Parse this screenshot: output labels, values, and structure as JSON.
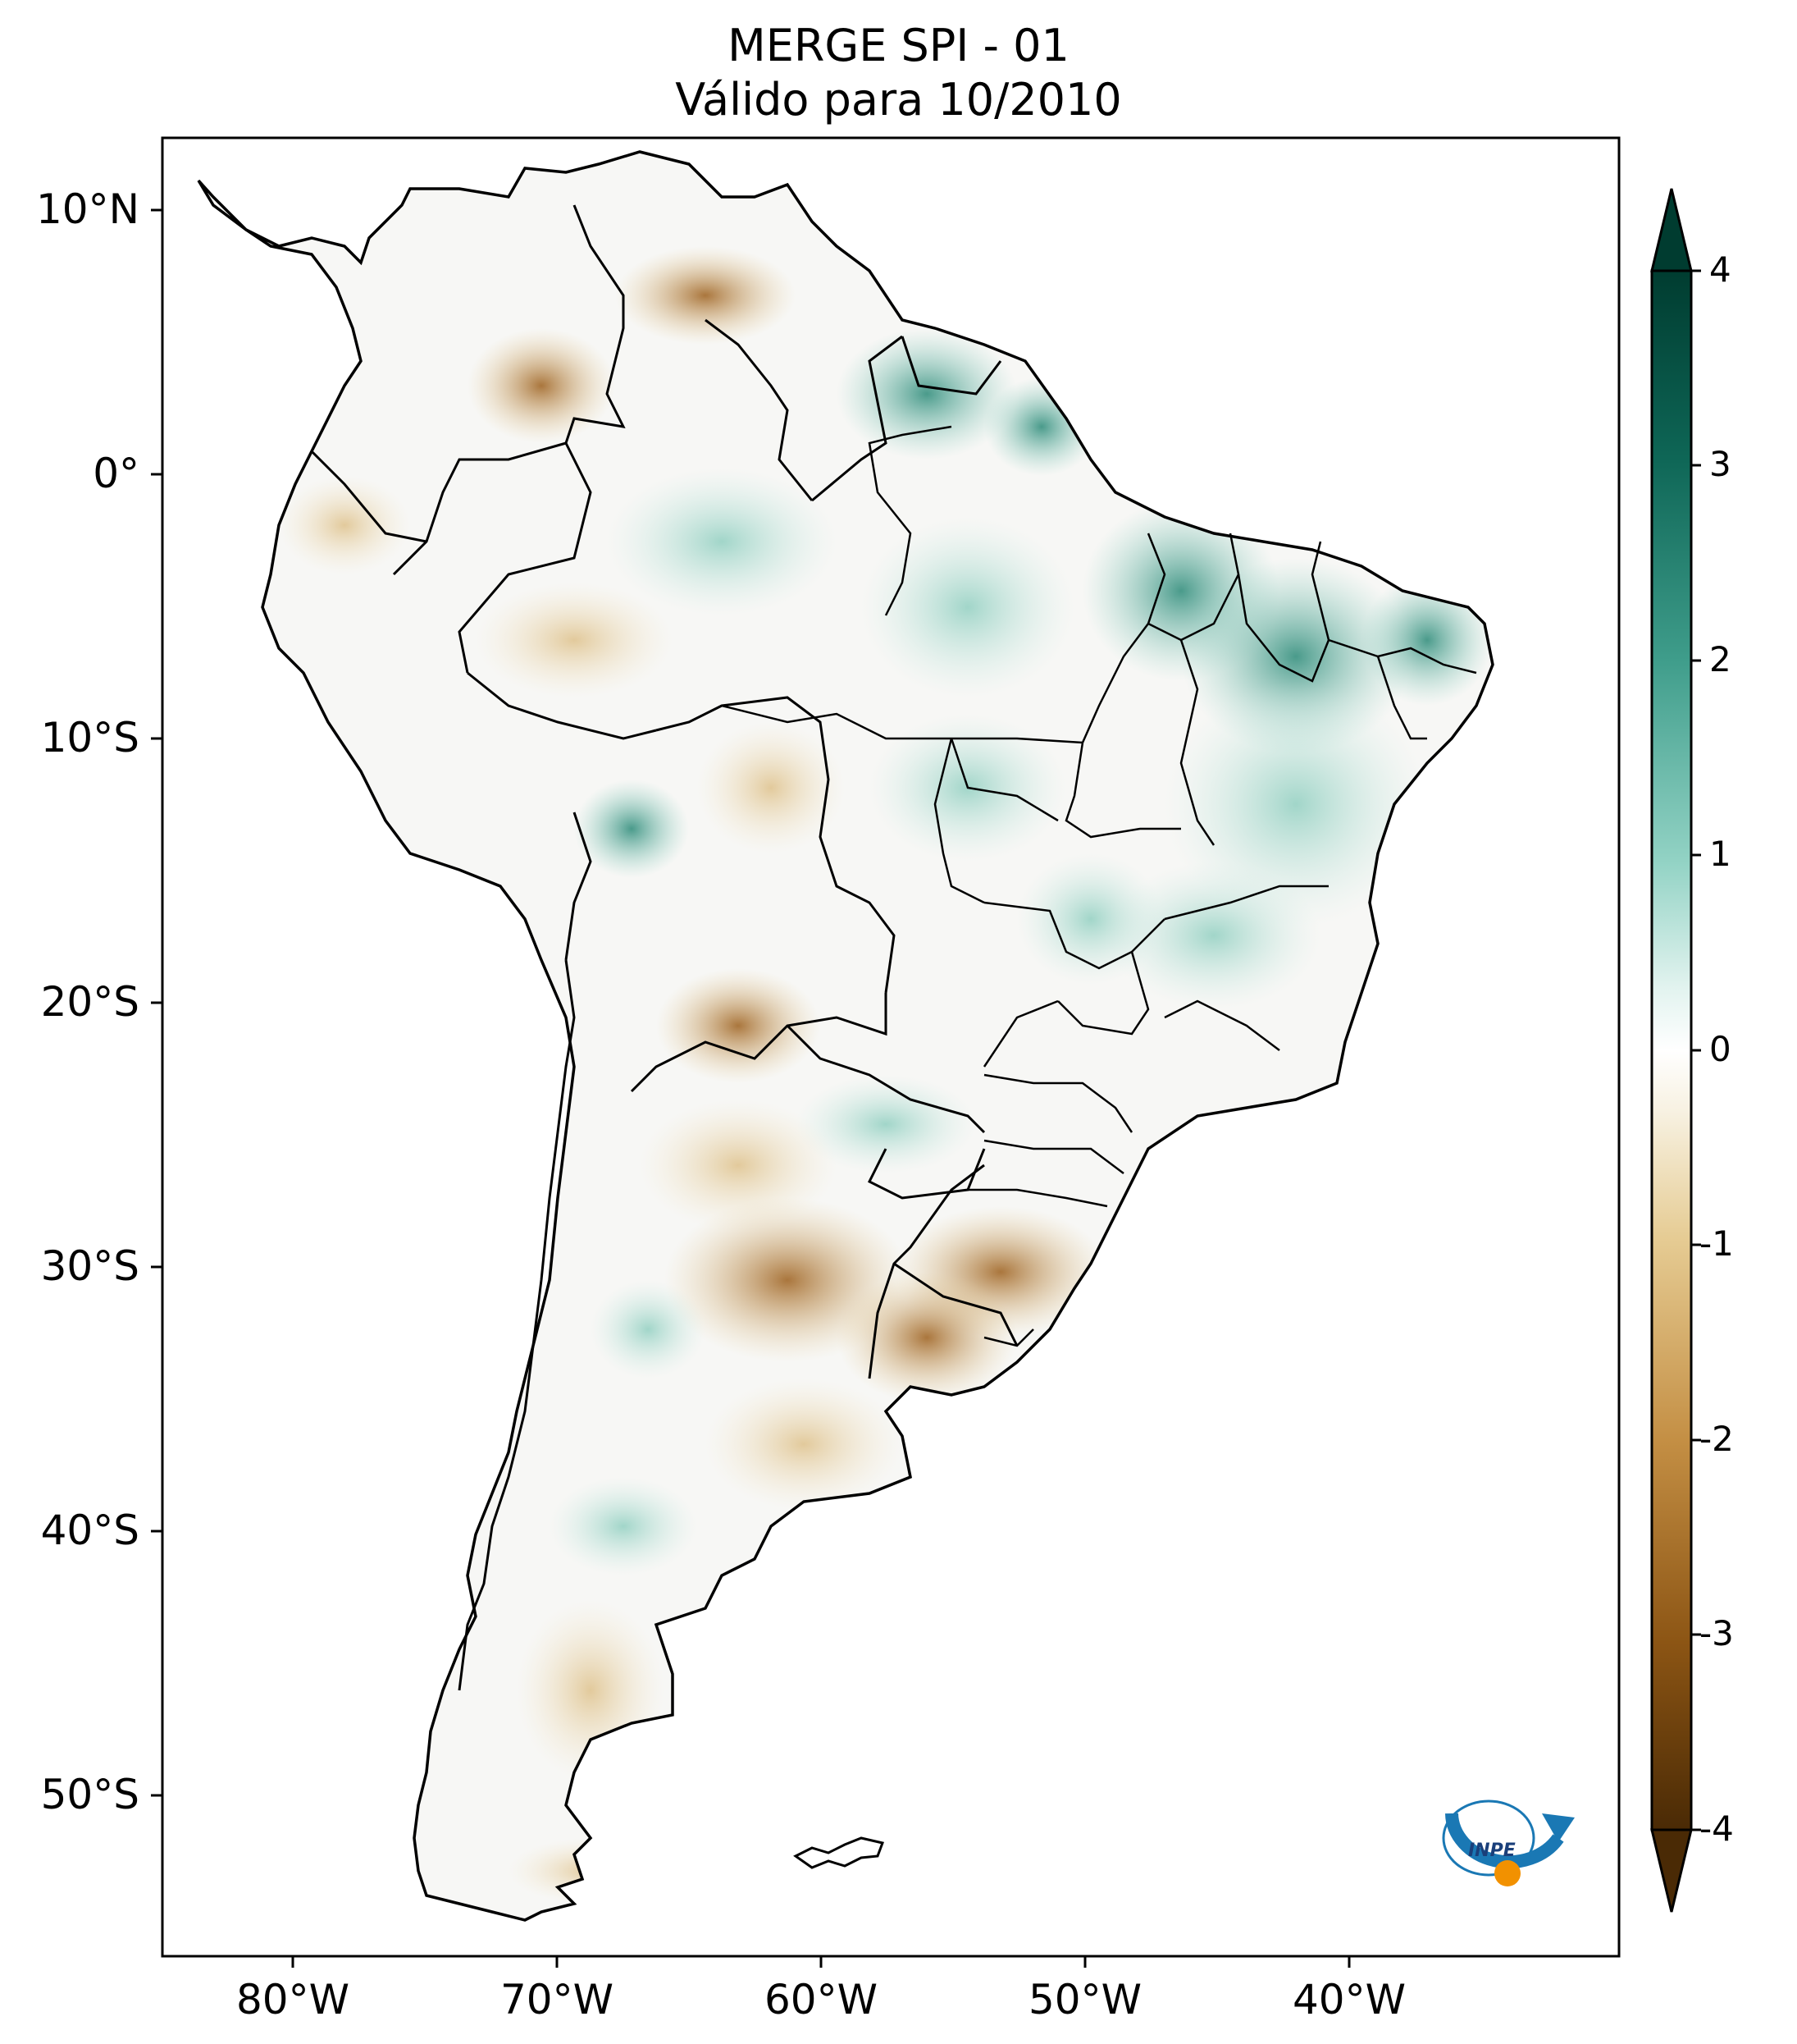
{
  "title": {
    "line1": "MERGE   SPI - 01",
    "line2": "Válido para 10/2010"
  },
  "axes": {
    "lat_ticks": [
      "10°N",
      "0°",
      "10°S",
      "20°S",
      "30°S",
      "40°S",
      "50°S"
    ],
    "lon_ticks": [
      "80°W",
      "70°W",
      "60°W",
      "50°W",
      "40°W"
    ]
  },
  "colorbar": {
    "ticks": [
      "4",
      "3",
      "2",
      "1",
      "0",
      "-1",
      "-2",
      "-3",
      "-4"
    ],
    "range": [
      -4,
      4
    ],
    "colors": [
      "#4a2a05",
      "#8c5514",
      "#c48f44",
      "#e6cc94",
      "#f7f1e1",
      "#ffffff",
      "#e2f3ef",
      "#93d3c5",
      "#3f9d8b",
      "#0e6656",
      "#003c30"
    ]
  },
  "logo": {
    "text": "INPE",
    "accent_color": "#1a78b4",
    "dot_color": "#f29100"
  },
  "colors": {
    "border": "#000000",
    "wet": "#3f9d8b",
    "dry": "#a86d28"
  }
}
